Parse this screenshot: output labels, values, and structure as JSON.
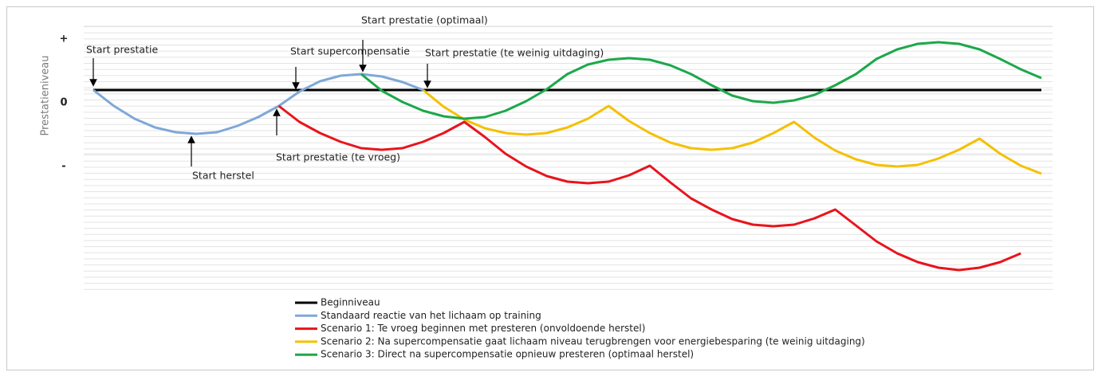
{
  "chart_data": {
    "type": "line",
    "y_label": "Prestatieniveau",
    "x": [
      0,
      1,
      2,
      3,
      4,
      5,
      6,
      7,
      8,
      9,
      10,
      11,
      12,
      13,
      14,
      15,
      16,
      17,
      18,
      19,
      20,
      21,
      22,
      23,
      24,
      25,
      26,
      27,
      28,
      29,
      30,
      31,
      32,
      33,
      34,
      35,
      36,
      37,
      38,
      39,
      40,
      41,
      42,
      43,
      44,
      45,
      46
    ],
    "xlim": [
      0,
      46
    ],
    "ylim": [
      -25,
      8
    ],
    "yticks": [
      {
        "value": 8,
        "label": "+"
      },
      0,
      {
        "value": -8,
        "label": "-"
      }
    ],
    "grid": true,
    "legend": "bottom",
    "series": [
      {
        "name": "Beginniveau",
        "color": "#000000",
        "values": [
          0,
          0,
          0,
          0,
          0,
          0,
          0,
          0,
          0,
          0,
          0,
          0,
          0,
          0,
          0,
          0,
          0,
          0,
          0,
          0,
          0,
          0,
          0,
          0,
          0,
          0,
          0,
          0,
          0,
          0,
          0,
          0,
          0,
          0,
          0,
          0,
          0,
          0,
          0,
          0,
          0,
          0,
          0,
          0,
          0,
          0,
          0
        ]
      },
      {
        "name": "Standaard reactie van het lichaam op training",
        "color": "#7fa8d6",
        "values": [
          0,
          -2,
          -3.6,
          -4.7,
          -5.3,
          -5.5,
          -5.3,
          -4.5,
          -3.4,
          -2,
          -0.2,
          1.1,
          1.8,
          2,
          1.7,
          1,
          0,
          null,
          null,
          null,
          null,
          null,
          null,
          null,
          null,
          null,
          null,
          null,
          null,
          null,
          null,
          null,
          null,
          null,
          null,
          null,
          null,
          null,
          null,
          null,
          null,
          null,
          null,
          null,
          null,
          null,
          null
        ]
      },
      {
        "name": "Scenario 1: Te vroeg beginnen met presteren (onvoldoende herstel)",
        "color": "#e8141c",
        "values": [
          null,
          null,
          null,
          null,
          null,
          null,
          null,
          null,
          null,
          -2,
          -4,
          -5.4,
          -6.5,
          -7.3,
          -7.5,
          -7.3,
          -6.5,
          -5.4,
          -4,
          -5.9,
          -8,
          -9.6,
          -10.8,
          -11.5,
          -11.7,
          -11.5,
          -10.7,
          -9.5,
          -11.6,
          -13.6,
          -15,
          -16.2,
          -16.9,
          -17.1,
          -16.9,
          -16.1,
          -15,
          -17,
          -19,
          -20.5,
          -21.6,
          -22.3,
          -22.6,
          -22.3,
          -21.6,
          -20.5,
          null
        ]
      },
      {
        "name": "Scenario 2: Na supercompensatie gaat lichaam niveau terugbrengen voor energiebesparing (te weinig uitdaging)",
        "color": "#f5c000",
        "values": [
          null,
          null,
          null,
          null,
          null,
          null,
          null,
          null,
          null,
          null,
          null,
          null,
          null,
          null,
          null,
          null,
          0,
          -2.1,
          -3.7,
          -4.8,
          -5.4,
          -5.6,
          -5.4,
          -4.7,
          -3.6,
          -2,
          -3.9,
          -5.4,
          -6.6,
          -7.3,
          -7.5,
          -7.3,
          -6.6,
          -5.4,
          -4,
          -6,
          -7.6,
          -8.7,
          -9.4,
          -9.6,
          -9.4,
          -8.6,
          -7.5,
          -6.1,
          -8,
          -9.5,
          -10.5
        ]
      },
      {
        "name": "Scenario 3: Direct na supercompensatie opnieuw presteren (optimaal herstel)",
        "color": "#1ca84a",
        "values": [
          null,
          null,
          null,
          null,
          null,
          null,
          null,
          null,
          null,
          null,
          null,
          null,
          null,
          2,
          -0.1,
          -1.5,
          -2.6,
          -3.3,
          -3.6,
          -3.4,
          -2.6,
          -1.4,
          0.1,
          2,
          3.2,
          3.8,
          4,
          3.8,
          3.1,
          2,
          0.6,
          -0.7,
          -1.4,
          -1.6,
          -1.3,
          -0.6,
          0.6,
          2,
          3.9,
          5.1,
          5.8,
          6,
          5.8,
          5.1,
          3.9,
          2.6,
          1.5
        ]
      }
    ],
    "annotations": [
      "Start prestatie",
      "Start herstel",
      "Start prestatie (te vroeg)",
      "Start supercompensatie",
      "Start prestatie (optimaal)",
      "Start prestatie (te weinig uitdaging)"
    ]
  }
}
